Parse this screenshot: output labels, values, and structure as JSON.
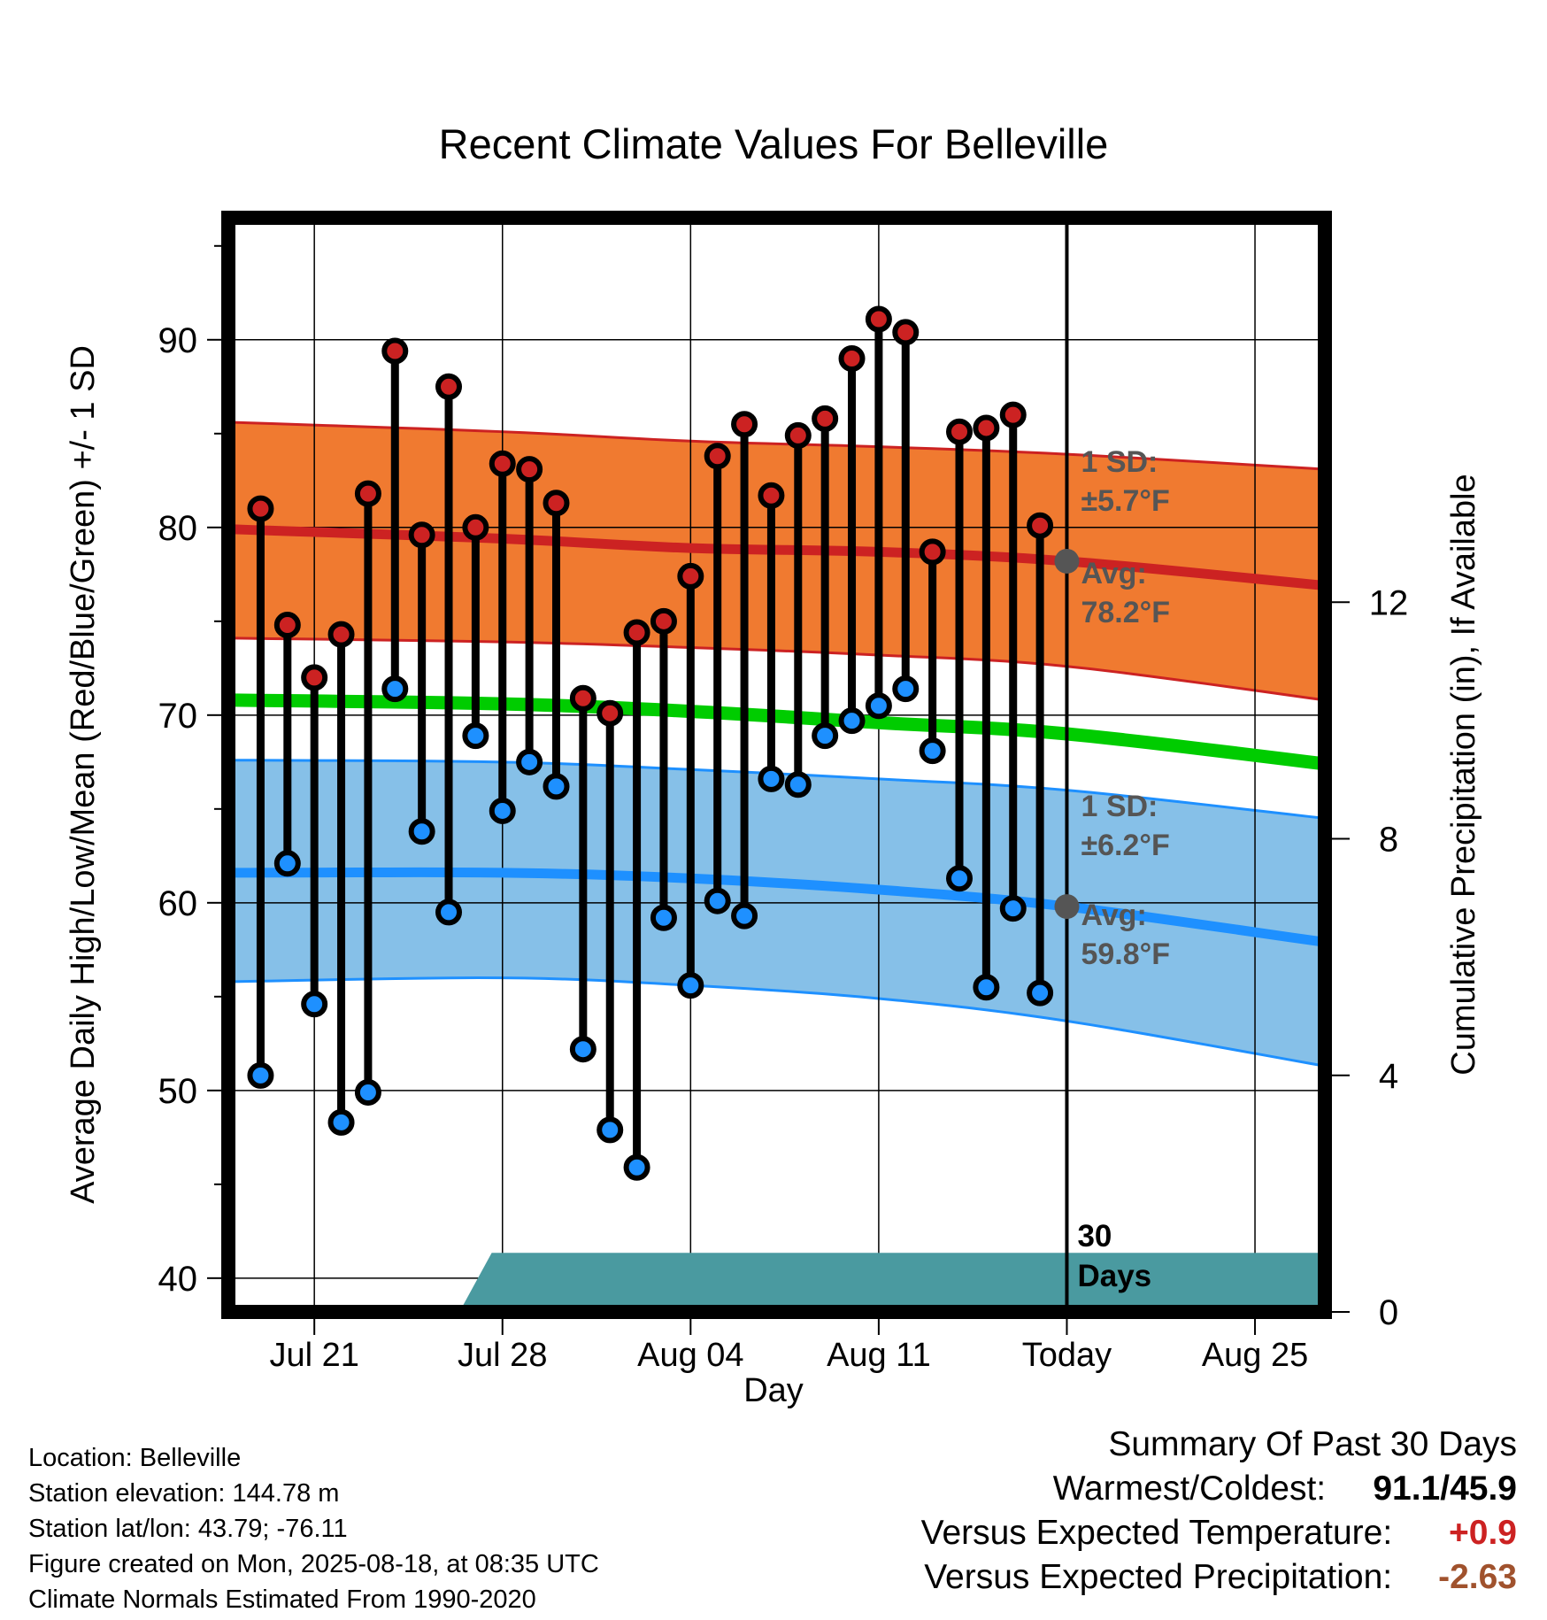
{
  "chart_data": {
    "type": "line",
    "title": "Recent Climate Values For Belleville",
    "xlabel": "Day",
    "ylabel": "Average Daily High/Low/Mean (Red/Blue/Green) +/- 1 SD",
    "y2label": "Cumulative Precipitation (in), If Available",
    "ylim": [
      38.2,
      96.5
    ],
    "y2lim": [
      0,
      18.5
    ],
    "yticks": [
      40,
      50,
      60,
      70,
      80,
      90
    ],
    "y2ticks": [
      0,
      4,
      8,
      12
    ],
    "x_tick_labels": [
      "Jul 21",
      "Jul 28",
      "Aug 04",
      "Aug 11",
      "Today",
      "Aug 25"
    ],
    "x_tick_days": [
      -28,
      -21,
      -14,
      -7,
      0,
      7
    ],
    "x_note": "x values are days relative to Today (Aug 18)",
    "xlim": [
      -31.2,
      9.6
    ],
    "daily_obs": {
      "day": [
        -30,
        -29,
        -28,
        -27,
        -26,
        -25,
        -24,
        -23,
        -22,
        -21,
        -20,
        -19,
        -18,
        -17,
        -16,
        -15,
        -14,
        -13,
        -12,
        -11,
        -10,
        -9,
        -8,
        -7,
        -6,
        -5,
        -4,
        -3,
        -2,
        -1
      ],
      "high": [
        81.0,
        74.8,
        72.0,
        74.3,
        81.8,
        89.4,
        79.6,
        87.5,
        80.0,
        83.4,
        83.1,
        81.3,
        70.9,
        70.1,
        74.4,
        75.0,
        77.4,
        83.8,
        85.5,
        81.7,
        84.9,
        85.8,
        89.0,
        91.1,
        90.4,
        78.7,
        85.1,
        85.3,
        86.0,
        80.1
      ],
      "low": [
        50.8,
        62.1,
        54.6,
        48.3,
        49.9,
        71.4,
        63.8,
        59.5,
        68.9,
        64.9,
        67.5,
        66.2,
        52.2,
        47.9,
        45.9,
        59.2,
        55.6,
        60.1,
        59.3,
        66.6,
        66.3,
        68.9,
        69.7,
        70.5,
        71.4,
        68.1,
        61.3,
        55.5,
        59.7,
        55.2
      ]
    },
    "normals": {
      "day": [
        -31,
        -21,
        -14,
        -7,
        0,
        9.6
      ],
      "mean": [
        70.8,
        70.6,
        70.2,
        69.6,
        69.0,
        67.4
      ],
      "high": [
        79.9,
        79.4,
        78.9,
        78.7,
        78.2,
        76.9
      ],
      "high_sd_upper": [
        85.6,
        85.1,
        84.6,
        84.3,
        83.9,
        83.1
      ],
      "high_sd_lower": [
        74.1,
        73.9,
        73.6,
        73.2,
        72.6,
        70.8
      ],
      "low": [
        61.6,
        61.6,
        61.3,
        60.7,
        59.8,
        57.9
      ],
      "low_sd_upper": [
        67.6,
        67.5,
        67.1,
        66.6,
        66.0,
        64.5
      ],
      "low_sd_lower": [
        55.8,
        56.0,
        55.6,
        54.9,
        53.7,
        51.3
      ]
    },
    "precip_cumulative": {
      "day": [
        -31,
        -22.6,
        -21.4,
        9.6
      ],
      "value": [
        0,
        0,
        1.0,
        1.0
      ]
    },
    "annotations": {
      "high_sd_label": "1 SD:",
      "high_sd_value": "±5.7°F",
      "high_avg_label": "Avg:",
      "high_avg_value": "78.2°F",
      "low_sd_label": "1 SD:",
      "low_sd_value": "±6.2°F",
      "low_avg_label": "Avg:",
      "low_avg_value": "59.8°F",
      "days_line1": "30",
      "days_line2": "Days"
    },
    "grid": true,
    "colors": {
      "high_band": "#f07a30",
      "high_line": "#cc2222",
      "mean_line": "#00cc00",
      "low_band": "#86c0e8",
      "low_line": "#1e90ff",
      "high_dot": "#cc2222",
      "low_dot": "#1e90ff",
      "precip": "#4a9aa0",
      "annotation_text": "#555555"
    }
  },
  "info": {
    "location": "Location: Belleville",
    "elevation": "Station elevation: 144.78 m",
    "latlon": "Station lat/lon: 43.79; -76.11",
    "created": "Figure created on Mon, 2025-08-18, at 08:35 UTC",
    "normals": "Climate Normals Estimated From 1990-2020"
  },
  "summary": {
    "title": "Summary Of Past 30 Days",
    "warm_cold_label": "Warmest/Coldest:",
    "warm_cold_value": "91.1/45.9",
    "temp_label": "Versus Expected Temperature:",
    "temp_value": "+0.9",
    "temp_color": "#cc2222",
    "precip_label": "Versus Expected Precipitation:",
    "precip_value": "-2.63",
    "precip_color": "#a0522d"
  }
}
